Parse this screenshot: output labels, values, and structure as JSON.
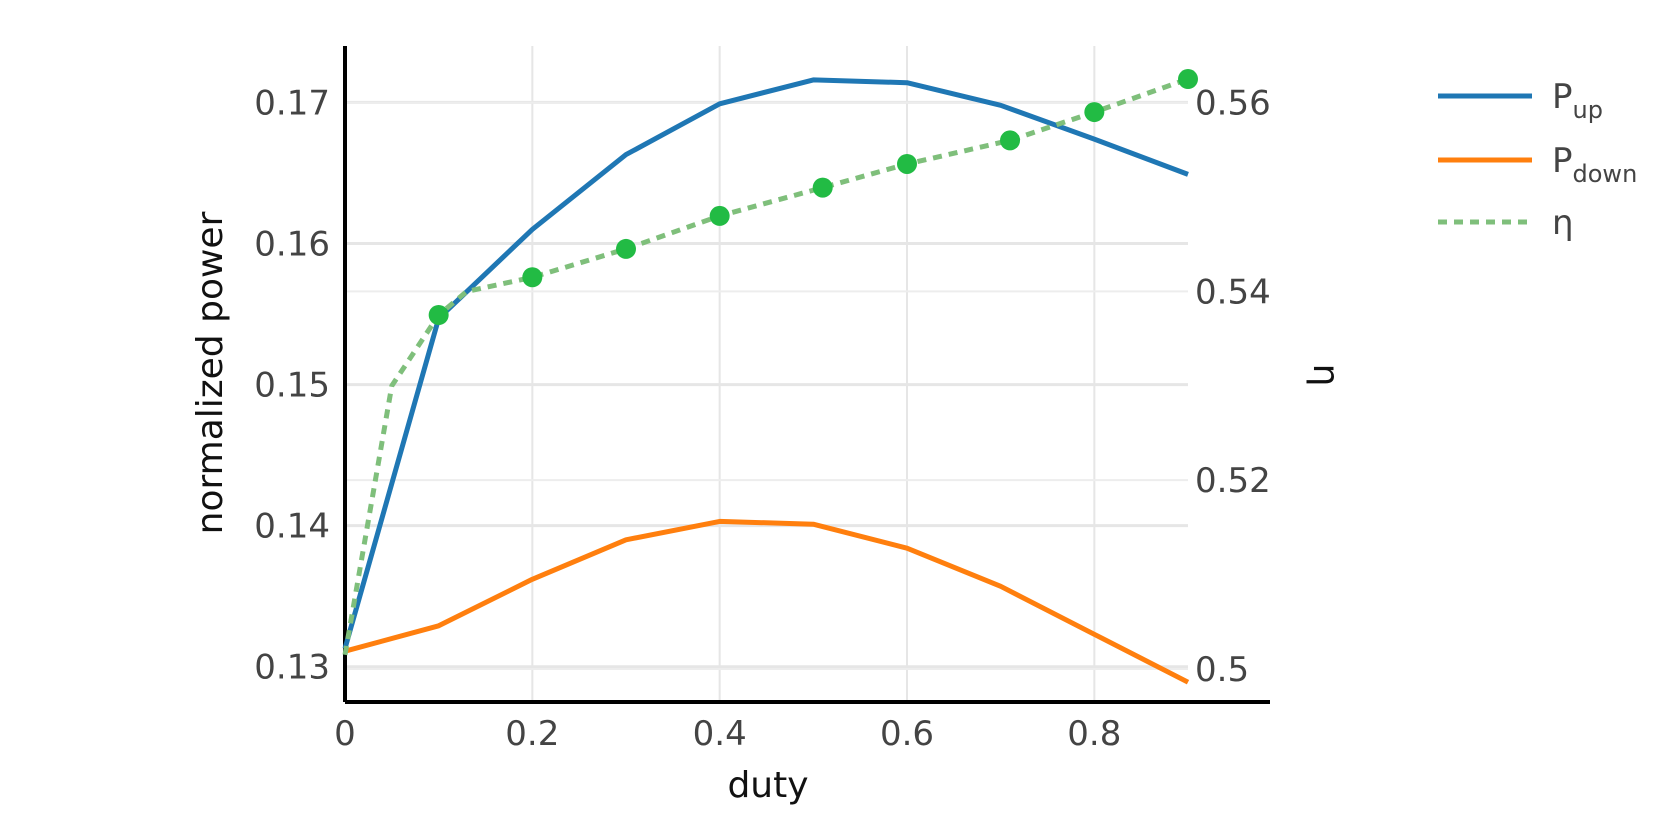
{
  "chart_data": {
    "type": "line",
    "title": "",
    "xlabel": "duty",
    "ylabel_left": "normalized power",
    "ylabel_right": "η",
    "grid": true,
    "legend_position": "right",
    "x_ticks": [
      "0",
      "0.2",
      "0.4",
      "0.6",
      "0.8"
    ],
    "x_tick_values": [
      0,
      0.2,
      0.4,
      0.6,
      0.8
    ],
    "y_left_ticks": [
      "0.13",
      "0.14",
      "0.15",
      "0.16",
      "0.17"
    ],
    "y_left_tick_values": [
      0.13,
      0.14,
      0.15,
      0.16,
      0.17
    ],
    "y_right_ticks": [
      "0.5",
      "0.52",
      "0.54",
      "0.56"
    ],
    "y_right_tick_values": [
      0.5,
      0.52,
      0.54,
      0.56
    ],
    "xlim": [
      0,
      0.9
    ],
    "y_left_lim": [
      0.1275,
      0.174
    ],
    "y_right_lim": [
      0.4965,
      0.566
    ],
    "series": [
      {
        "name": "P",
        "name_sub": "up",
        "axis": "left",
        "color": "#1f77b4",
        "style": "solid",
        "x": [
          0,
          0.1,
          0.2,
          0.3,
          0.4,
          0.5,
          0.6,
          0.7,
          0.8,
          0.9
        ],
        "y": [
          0.1313,
          0.1547,
          0.161,
          0.1663,
          0.1699,
          0.1716,
          0.1714,
          0.1698,
          0.1674,
          0.1649
        ]
      },
      {
        "name": "P",
        "name_sub": "down",
        "axis": "left",
        "color": "#ff7f0e",
        "style": "solid",
        "x": [
          0,
          0.1,
          0.2,
          0.3,
          0.4,
          0.5,
          0.6,
          0.7,
          0.8,
          0.9
        ],
        "y": [
          0.1311,
          0.1329,
          0.1362,
          0.139,
          0.1403,
          0.1401,
          0.1384,
          0.1357,
          0.1323,
          0.1289
        ]
      },
      {
        "name": "η",
        "name_sub": "",
        "axis": "right",
        "color": "#7fbf7b",
        "marker_color": "#22bb44",
        "style": "dotted",
        "x": [
          0,
          0.05,
          0.1,
          0.13,
          0.2,
          0.3,
          0.4,
          0.51,
          0.6,
          0.71,
          0.8,
          0.9
        ],
        "y": [
          0.5015,
          0.53,
          0.5375,
          0.54,
          0.5415,
          0.5445,
          0.548,
          0.551,
          0.5535,
          0.556,
          0.559,
          0.5625
        ],
        "marker_indices": [
          2,
          4,
          5,
          6,
          7,
          8,
          9,
          10,
          11
        ]
      }
    ]
  }
}
